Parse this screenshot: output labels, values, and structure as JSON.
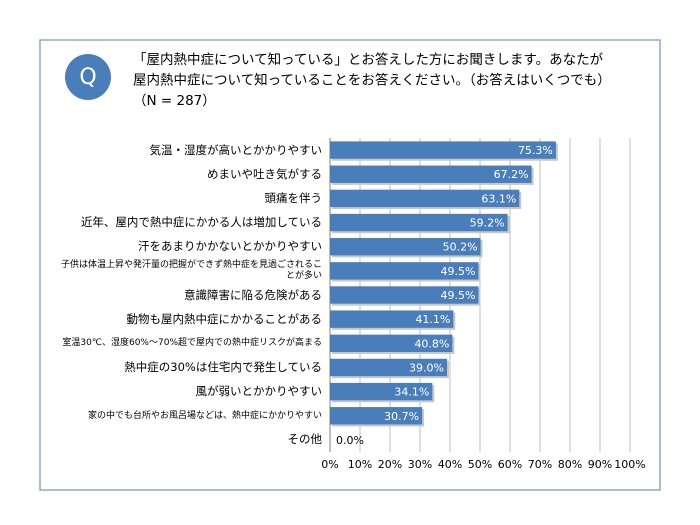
{
  "chart_data": {
    "type": "barh",
    "icon": "Q",
    "question_lines": [
      "「屋内熱中症について知っている」とお答えした方にお聞きします。あなたが",
      "屋内熱中症について知っていることをお答えください。（お答えはいくつでも）",
      "（N = 287）"
    ],
    "categories": [
      "気温・湿度が高いとかかりやすい",
      "めまいや吐き気がする",
      "頭痛を伴う",
      "近年、屋内で熱中症にかかる人は増加している",
      "汗をあまりかかないとかかりやすい",
      "子供は体温上昇や発汗量の把握ができず熱中症を見過ごされることが多い",
      "意識障害に陥る危険がある",
      "動物も屋内熱中症にかかることがある",
      "室温30℃、湿度60%～70%超で屋内での熱中症リスクが高まる",
      "熱中症の30%は住宅内で発生している",
      "風が弱いとかかりやすい",
      "家の中でも台所やお風呂場などは、熱中症にかかりやすい",
      "その他"
    ],
    "values": [
      75.3,
      67.2,
      63.1,
      59.2,
      50.2,
      49.5,
      49.5,
      41.1,
      40.8,
      39.0,
      34.1,
      30.7,
      0.0
    ],
    "value_labels": [
      "75.3%",
      "67.2%",
      "63.1%",
      "59.2%",
      "50.2%",
      "49.5%",
      "49.5%",
      "41.1%",
      "40.8%",
      "39.0%",
      "34.1%",
      "30.7%",
      "0.0%"
    ],
    "color": "#4a7ebb",
    "xlim": [
      0,
      100
    ],
    "xticks": [
      {
        "value": 0,
        "label": "0%"
      },
      {
        "value": 10,
        "label": "10%"
      },
      {
        "value": 20,
        "label": "20%"
      },
      {
        "value": 30,
        "label": "30%"
      },
      {
        "value": 40,
        "label": "40%"
      },
      {
        "value": 50,
        "label": "50%"
      },
      {
        "value": 60,
        "label": "60%"
      },
      {
        "value": 70,
        "label": "70%"
      },
      {
        "value": 80,
        "label": "80%"
      },
      {
        "value": 90,
        "label": "90%"
      },
      {
        "value": 100,
        "label": "100%"
      }
    ],
    "grid": true
  }
}
